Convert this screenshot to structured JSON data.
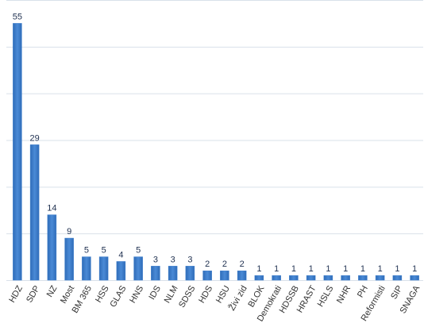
{
  "chart_data": {
    "type": "bar",
    "categories": [
      "HDZ",
      "SDP",
      "NZ",
      "Most",
      "BM 365",
      "HSS",
      "GLAS",
      "HNS",
      "IDS",
      "NLM",
      "SDSS",
      "HDS",
      "HSU",
      "Živi zid",
      "BLOK",
      "Demokrati",
      "HDSSB",
      "HRAST",
      "HSLS",
      "NHR",
      "PH",
      "Reformisti",
      "SIP",
      "SNAGA"
    ],
    "values": [
      55,
      29,
      14,
      9,
      5,
      5,
      4,
      5,
      3,
      3,
      3,
      2,
      2,
      2,
      1,
      1,
      1,
      1,
      1,
      1,
      1,
      1,
      1,
      1
    ],
    "color": "#3f7fcc",
    "ylim": [
      0,
      60
    ],
    "yticks": [
      0,
      10,
      20,
      30,
      40,
      50,
      60
    ],
    "grid": true
  }
}
